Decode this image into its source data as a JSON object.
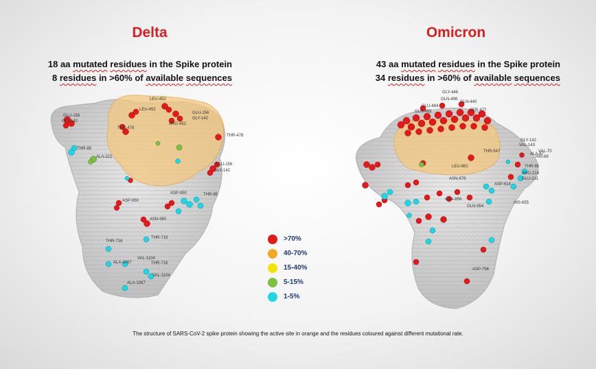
{
  "delta": {
    "title": "Delta",
    "line1_count": "18 aa",
    "line1_mutated": "mutated",
    "line1_residues": "residues",
    "line1_tail": "in the Spike protein",
    "line2_count": "8",
    "line2_residues": "residues",
    "line2_mid": "in >60% of",
    "line2_available": "available",
    "line2_sequences": "sequences",
    "labels": {
      "l1": "GLU-156",
      "l2": "GLY-142",
      "l3": "LEU-452",
      "l4": "LEU-452",
      "l5": "THR-478",
      "l6": "GLU-156",
      "l7": "GLY-142",
      "l8": "ARG-452",
      "l9": "THR-478",
      "l10": "THR-95",
      "l11": "ALA-222",
      "l12": "GLU-156",
      "l13": "GLY-142",
      "l14": "ASP-950",
      "l15": "ASP-950",
      "l16": "ASN-950",
      "l17": "THR-716",
      "l18": "THR-719",
      "l19": "VAL-1104",
      "l20": "THR-716",
      "l21": "ALA-1087",
      "l22": "VAL-1104",
      "l23": "ALA-1087",
      "l24": "THR-95"
    }
  },
  "omicron": {
    "title": "Omicron",
    "line1_count": "43 aa",
    "line1_mutated": "mutated",
    "line1_residues": "residues",
    "line1_tail": "in the Spike protein",
    "line2_count": "34",
    "line2_residues": "residues",
    "line2_mid": "in >60% of",
    "line2_available": "available",
    "line2_sequences": "sequences",
    "labels": {
      "m1": "GLY-446",
      "m2": "GLN-496",
      "m3": "GLN-440",
      "m4": "GLU-484",
      "m5": "GLN-493",
      "m6": "SER-477",
      "m7": "THR-547",
      "m8": "GLY-142",
      "m9": "VAL-143",
      "m10": "VAL-70",
      "m11": "ALA-67",
      "m12": "HIS-69",
      "m13": "THR-95",
      "m14": "ARG-214",
      "m15": "GLU-211",
      "m16": "ASP-614",
      "m17": "HIS-655",
      "m18": "GLN-954",
      "m19": "ASN-679",
      "m20": "LEU-981",
      "m21": "ASP-796",
      "m22": "ASN-856"
    }
  },
  "legend": {
    "items": [
      {
        "label": ">70%",
        "color": "#e41a1a"
      },
      {
        "label": "40-70%",
        "color": "#f5a623"
      },
      {
        "label": "15-40%",
        "color": "#f2e600"
      },
      {
        "label": "5-15%",
        "color": "#7cc242"
      },
      {
        "label": "1-5%",
        "color": "#20d6e6"
      }
    ]
  },
  "caption": "The structure of SARS-CoV-2 spike protein showing the active site in orange and the residues coloured against different mutational rate."
}
